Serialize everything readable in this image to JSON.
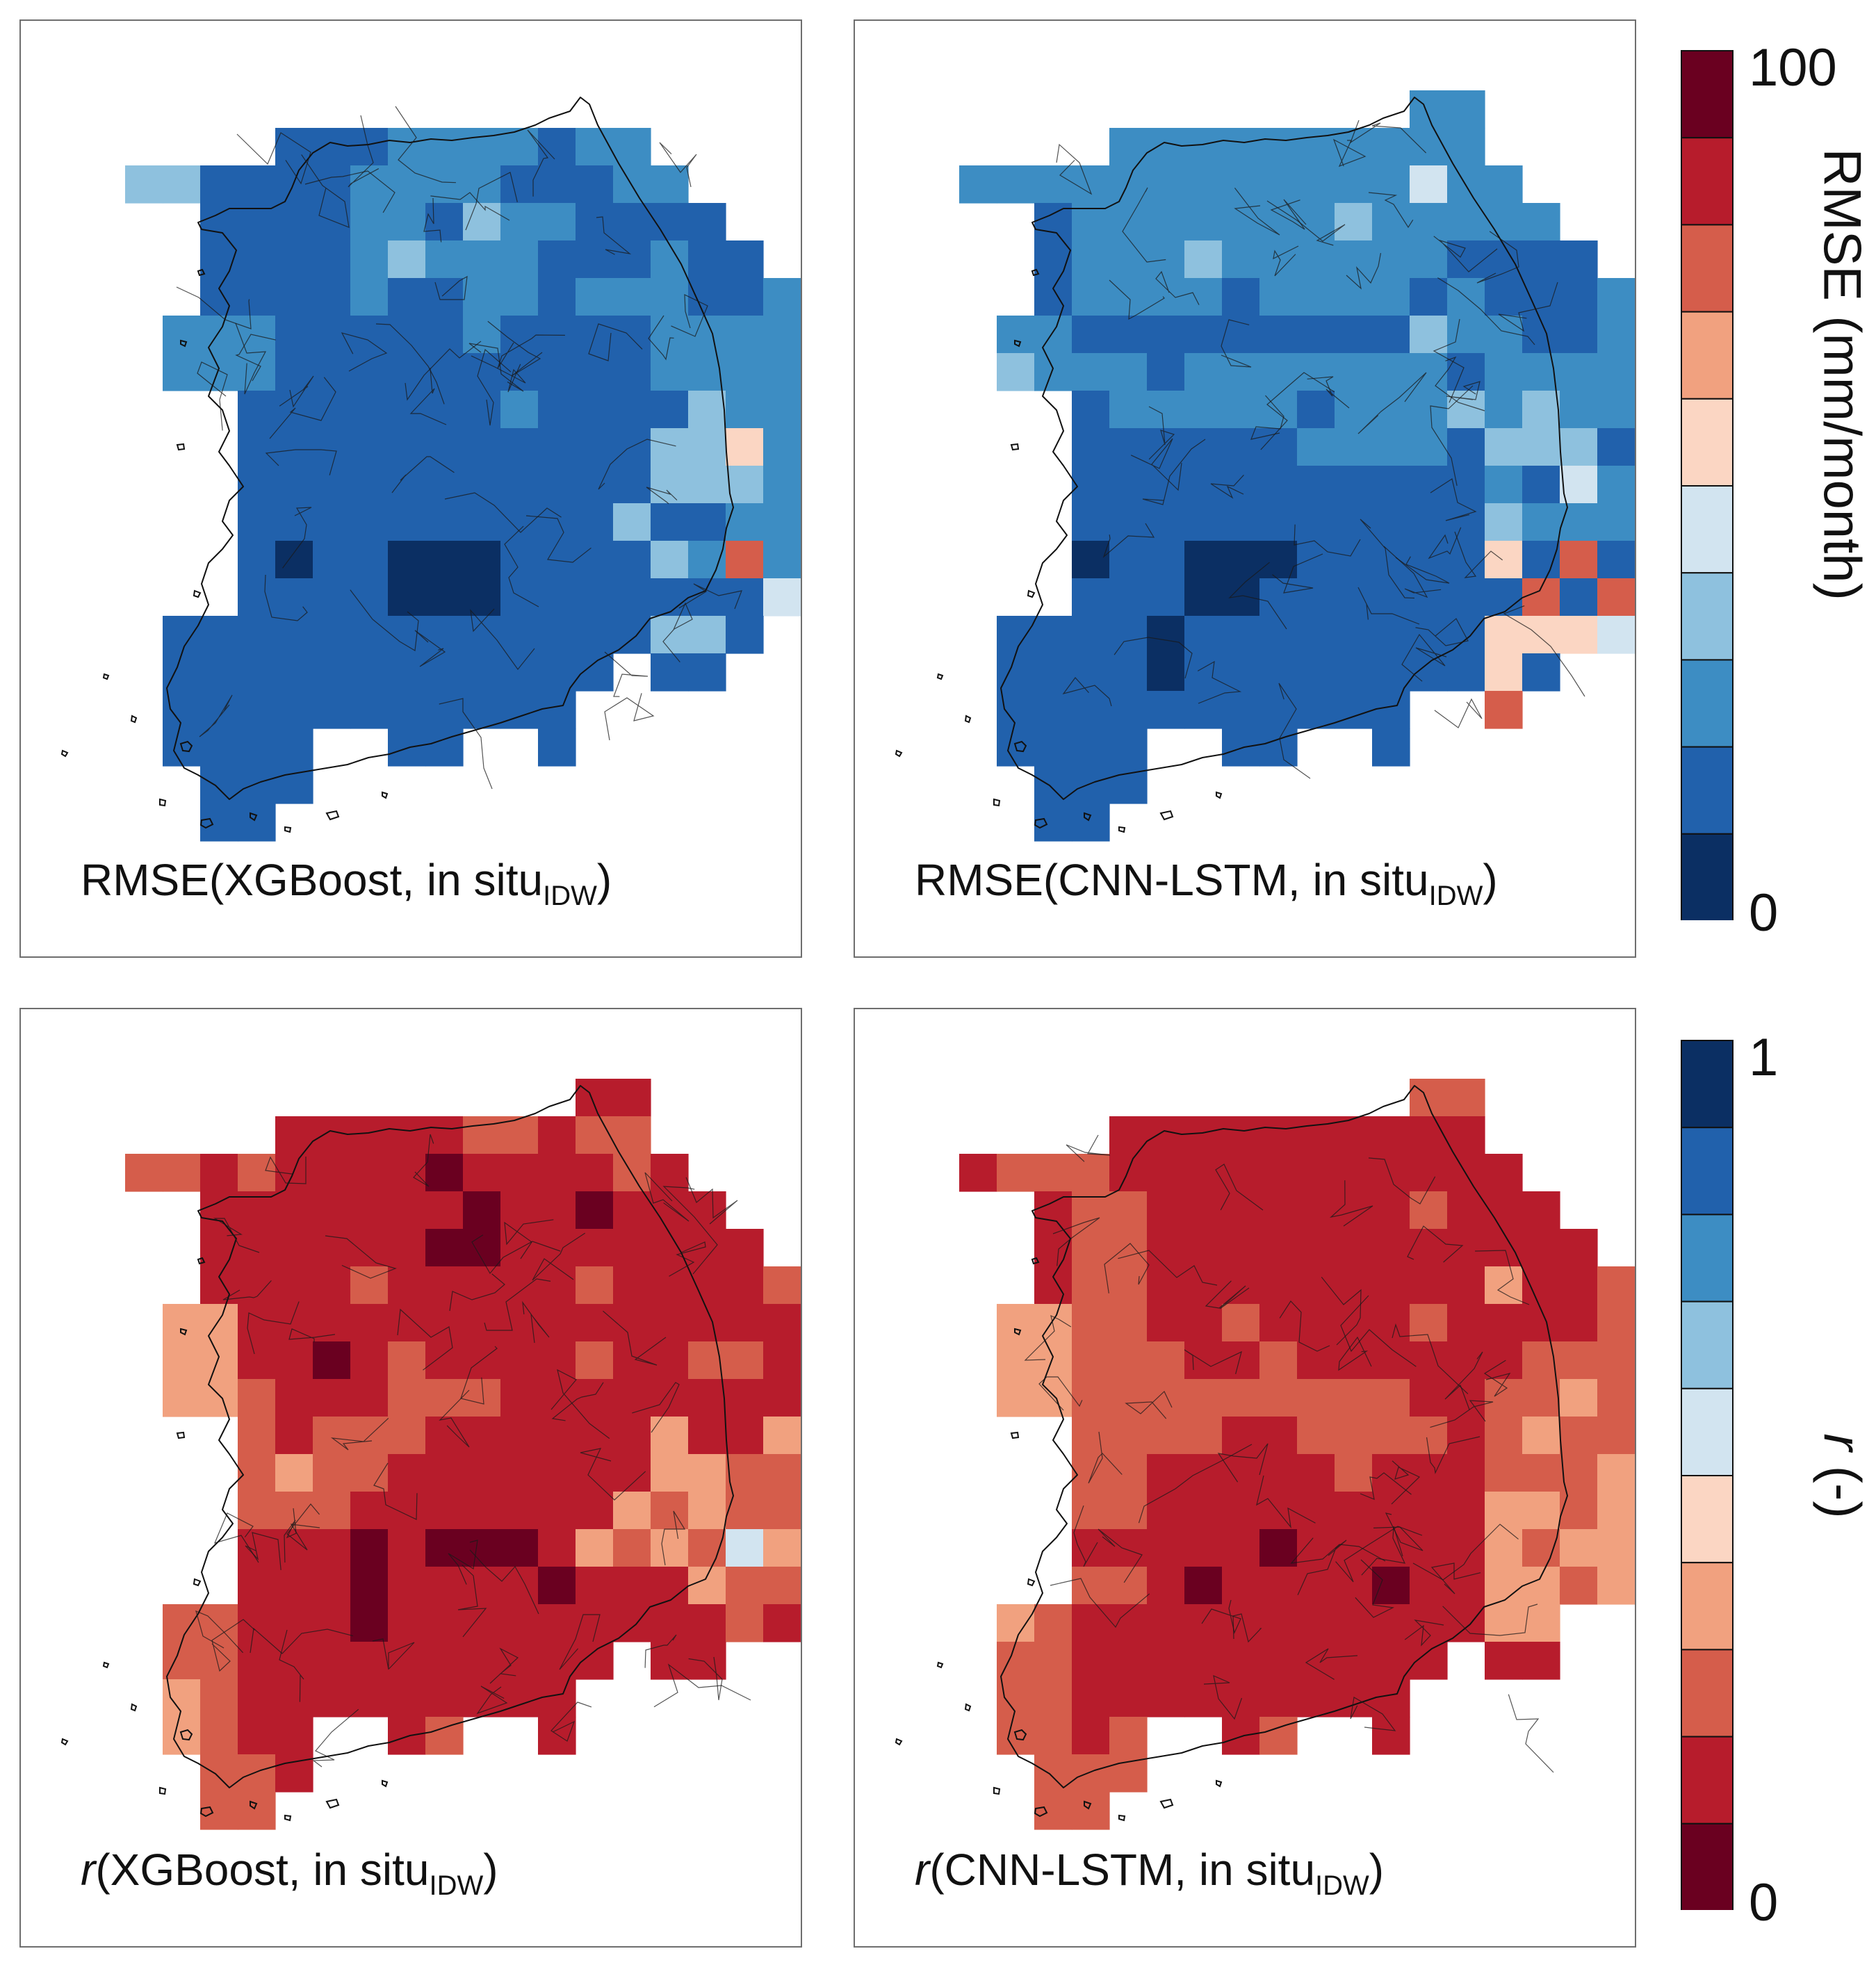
{
  "colors": {
    "rmse_scale_low_to_high": [
      "#0b2f63",
      "#2161ac",
      "#3d8dc3",
      "#8ec1de",
      "#d2e4f0",
      "#fbd6c3",
      "#f1a17f",
      "#d55d4b",
      "#b71c2c",
      "#6a0020"
    ],
    "r_scale_low_to_high": [
      "#6a0020",
      "#b71c2c",
      "#d55d4b",
      "#f1a17f",
      "#fbd6c3",
      "#d2e4f0",
      "#8ec1de",
      "#3d8dc3",
      "#2161ac",
      "#0b2f63"
    ]
  },
  "colorbars": {
    "rmse": {
      "label": "RMSE (mm/month)",
      "min_label": "0",
      "max_label": "100"
    },
    "r": {
      "label_italic": "r",
      "label_rest": " (-)",
      "min_label": "0",
      "max_label": "1"
    }
  },
  "panels": [
    {
      "caption_prefix": "RMSE(XGBoost, in situ",
      "caption_italic": "",
      "caption_sub": "IDW",
      "caption_suffix": ")",
      "scale": "rmse",
      "grid": [
        "............II......",
        "....DDDCCCCDCC......",
        "LLDDDDCCCCDDDCC.....",
        "..DDDDCCDLCCDDDD....",
        "..DDDDCLCCCDDDCDD...",
        "..DDDDCDDCCDCCCDDC..",
        ".CCCDDDDDCDDDDCCCC..",
        ".CCCDDDDDDDDDDCCCC..",
        "...DDDDDDDCDDDDLCC..",
        "...DDDDDDDDDDDLLPC..",
        "...DDDDDDDDDDDLLLCC.",
        "...DDDDDDDDDDLDDCCC.",
        "...DNDDNNNDDDDLCRCC.",
        "...DDDDNNNDDDDDDDXC.",
        ".DDDDDDDDDDDDDLLD...",
        ".DDDDDDDDDDDD.DD....",
        ".DDDDDDDDDDD........",
        ".DDDD..DD..D........",
        "..DDD...............",
        "..DD................"
      ]
    },
    {
      "caption_prefix": "RMSE(CNN-LSTM, in situ",
      "caption_italic": "",
      "caption_sub": "IDW",
      "caption_suffix": ")",
      "scale": "rmse",
      "grid": [
        "............CC......",
        "....CCCCCCCCCC......",
        "CCCCCCCCCCCCXCC.....",
        "..DCCCCCCCLCCCCC....",
        "..DCCCLCCCCCCDDDD...",
        "..DCCCCDCCCCDCDDDC..",
        ".CCDDDDDDDDDLCCDDC..",
        ".LCCCDCCCCCCCDCCCC..",
        "...DCCCCCDCCCLCLCC..",
        "...DDDDDDCCCCDLLLD..",
        "...DDDDDDDDDDDCDXCC.",
        "...DDDDDDDDDDDLCCCL.",
        "...NDDNNNDDDDDPDRDL.",
        "...DDDNNDDDDDDDRDRR.",
        ".DDDDNDDDDDDDDPPPX..",
        ".DDDDNDDDDDDDDPD....",
        ".DDDDDDDDDDD..R.....",
        ".DDDD..DD..D........",
        "..DDD...............",
        "..DD................"
      ]
    },
    {
      "caption_prefix": "",
      "caption_italic": "r",
      "caption_sub": "IDW",
      "caption_suffix": "(XGBoost, in situ",
      "caption_end": ")",
      "scale": "r",
      "grid": [
        "............DD......",
        "....DDDDDCCDCC......",
        "CCDCDDDDNDDDDCD.....",
        "..DDDDDDDNDDNDDD....",
        "..DDDDDDNNDDDDDDD...",
        "..DDDDCDDDDDCDDDDC..",
        ".LLDDDDDDDDDDDDDDD..",
        ".LLDDNDCDDDDCDDCCD..",
        ".LLCDDDCCCDDDDDDDD..",
        "...CDCCCDDDDDDLDDL..",
        "...CLCCDDDDDDDLLCCL.",
        "...CCCDDDDDDDLCLCCC.",
        "...DDDNDNNNDLCLCPLC.",
        "...DDDNDDDDNDDDLCCL.",
        ".CCDDDNDDDDDDDDDCD..",
        ".CCDDDDDDDDDD.DD....",
        ".LCDDDDDDDDD........",
        ".LCDD..DC..D........",
        "..CCD...............",
        "..CC................"
      ]
    },
    {
      "caption_prefix": "",
      "caption_italic": "r",
      "caption_sub": "IDW",
      "caption_suffix": "(CNN-LSTM, in situ",
      "caption_end": ")",
      "scale": "r",
      "grid": [
        "............CC......",
        "....DDDDDDDDDD......",
        "DCCCDDDDDDDDDDD.....",
        "..DCCDDDDDDDCDDD....",
        "..DCCDDDDDDDDDDDD...",
        "..DCCDDDDDDDDDLDDC..",
        ".LLCCDDCDDDDCDDDDC..",
        ".LLCCCDDCDDDDDDCCC..",
        ".LLCCCCCCCCCDDCCLC..",
        "...CCCCDDCCCCDCLCC..",
        "...CCDDDDDCDDDCCCLC.",
        "...CCDDDDDDDDDLLCLC.",
        "...DDDDDNDDDDDLCLLC.",
        "...CCDNDDDDNDDLLCLC.",
        ".LCDDDDDDDDDDDLL....",
        ".CCDDDDDDDDDD.DD....",
        ".CCDDDDDDDDD........",
        ".CCDC..DC..D........",
        "..CCC...............",
        "..CC................"
      ]
    }
  ]
}
